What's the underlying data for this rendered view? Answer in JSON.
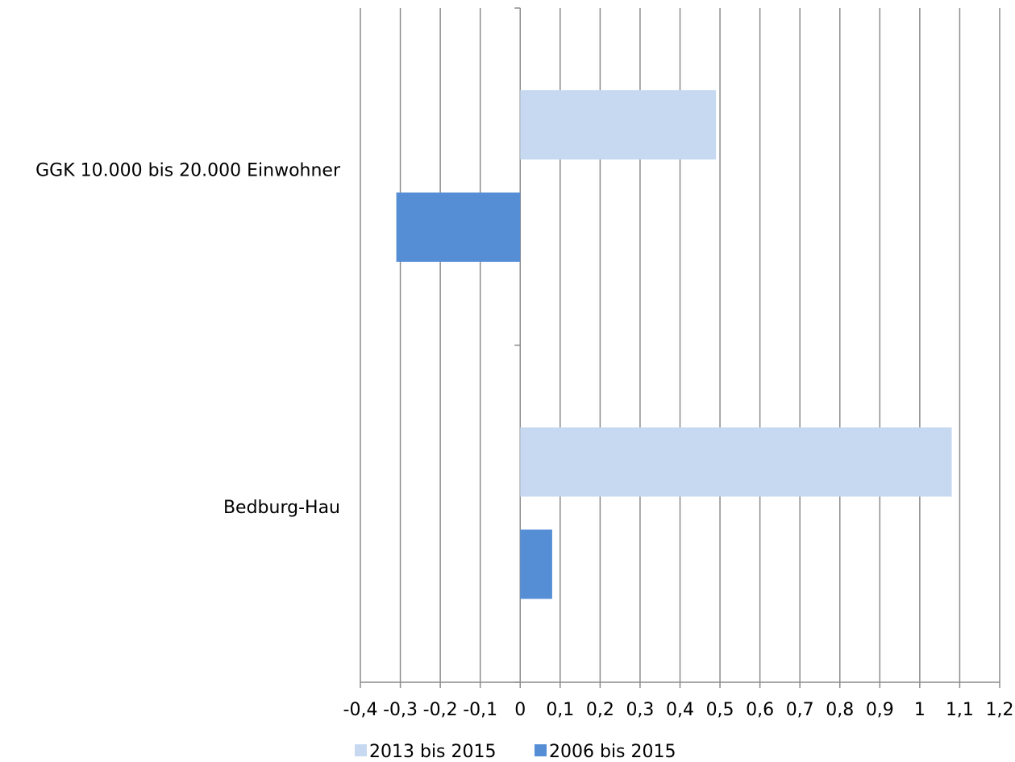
{
  "chart_data": {
    "type": "bar",
    "orientation": "horizontal",
    "categories": [
      "GGK 10.000 bis 20.000 Einwohner",
      "Bedburg-Hau"
    ],
    "series": [
      {
        "name": "2013 bis 2015",
        "values": [
          0.49,
          1.08
        ],
        "color": "#c6d9f1"
      },
      {
        "name": "2006 bis 2015",
        "values": [
          -0.31,
          0.08
        ],
        "color": "#558ed5"
      }
    ],
    "xlim": [
      -0.4,
      1.2
    ],
    "xticks": [
      "-0,4",
      "-0,3",
      "-0,2",
      "-0,1",
      "0",
      "0,1",
      "0,2",
      "0,3",
      "0,4",
      "0,5",
      "0,6",
      "0,7",
      "0,8",
      "0,9",
      "1",
      "1,1",
      "1,2"
    ],
    "grid": "vertical",
    "legend_position": "bottom",
    "title": "",
    "xlabel": "",
    "ylabel": ""
  }
}
